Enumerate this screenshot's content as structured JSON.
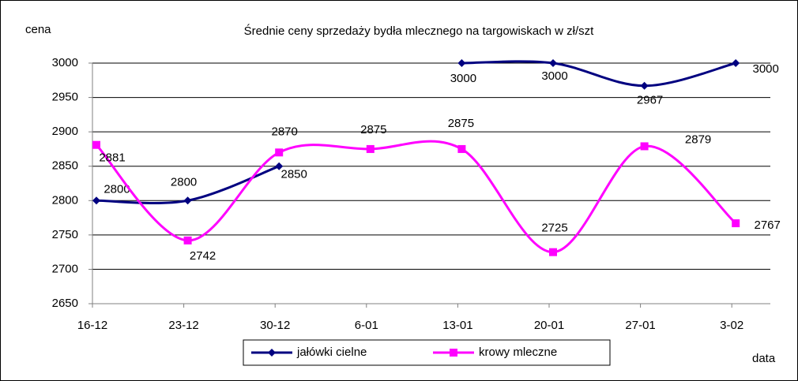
{
  "chart_data": {
    "type": "line",
    "title": "Średnie ceny sprzedaży bydła mlecznego na targowiskach w zł/szt",
    "y_label": "cena",
    "x_label": "data",
    "categories": [
      "16-12",
      "23-12",
      "30-12",
      "6-01",
      "13-01",
      "20-01",
      "27-01",
      "3-02"
    ],
    "series": [
      {
        "name": "jałówki cielne",
        "color": "#000080",
        "marker": "diamond",
        "values": [
          2800,
          2800,
          2850,
          null,
          3000,
          3000,
          2967,
          3000
        ]
      },
      {
        "name": "krowy mleczne",
        "color": "#ff00ff",
        "marker": "square",
        "values": [
          2881,
          2742,
          2870,
          2875,
          2875,
          2725,
          2879,
          2767
        ]
      }
    ],
    "ylim": [
      2650,
      3000
    ],
    "yticks": [
      2650,
      2700,
      2750,
      2800,
      2850,
      2900,
      2950,
      3000
    ],
    "grid": true,
    "smooth": true,
    "legend": "bottom"
  }
}
